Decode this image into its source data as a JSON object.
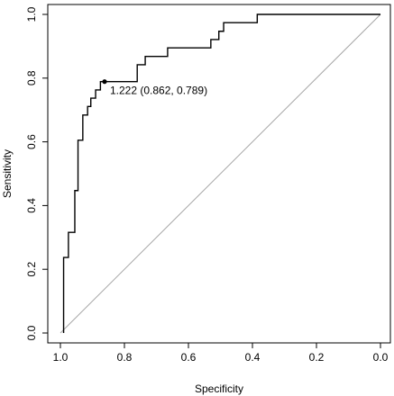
{
  "chart_data": {
    "type": "line",
    "title": "",
    "xlabel": "Specificity",
    "ylabel": "Sensitivity",
    "xlim": [
      1.0,
      0.0
    ],
    "ylim": [
      0.0,
      1.0
    ],
    "x_reversed": true,
    "x_ticks": [
      1.0,
      0.8,
      0.6,
      0.4,
      0.2,
      0.0
    ],
    "x_tick_labels": [
      "1.0",
      "0.8",
      "0.6",
      "0.4",
      "0.2",
      "0.0"
    ],
    "y_ticks": [
      0.0,
      0.2,
      0.4,
      0.6,
      0.8,
      1.0
    ],
    "y_tick_labels": [
      "0.0",
      "0.2",
      "0.4",
      "0.6",
      "0.8",
      "1.0"
    ],
    "grid": false,
    "series": [
      {
        "x": [
          0.99,
          0.99,
          0.975,
          0.975,
          0.955,
          0.955,
          0.945,
          0.945,
          0.93,
          0.93,
          0.915,
          0.915,
          0.905,
          0.905,
          0.89,
          0.89,
          0.875,
          0.875,
          0.862,
          0.862,
          0.76,
          0.76,
          0.735,
          0.735,
          0.665,
          0.665,
          0.53,
          0.53,
          0.505,
          0.505,
          0.49,
          0.49,
          0.475,
          0.475,
          0.385,
          0.385,
          0.0
        ],
        "y": [
          0.0,
          0.237,
          0.237,
          0.316,
          0.316,
          0.447,
          0.447,
          0.605,
          0.605,
          0.684,
          0.684,
          0.711,
          0.711,
          0.737,
          0.737,
          0.763,
          0.763,
          0.789,
          0.789,
          0.789,
          0.789,
          0.842,
          0.842,
          0.868,
          0.868,
          0.895,
          0.895,
          0.921,
          0.921,
          0.947,
          0.947,
          0.974,
          0.974,
          0.974,
          0.974,
          1.0,
          1.0
        ]
      }
    ],
    "reference_line": {
      "x": [
        1.0,
        0.0
      ],
      "y": [
        0.0,
        1.0
      ]
    },
    "annotation": {
      "x": 0.862,
      "y": 0.789,
      "text": "1.222 (0.862, 0.789)"
    }
  }
}
